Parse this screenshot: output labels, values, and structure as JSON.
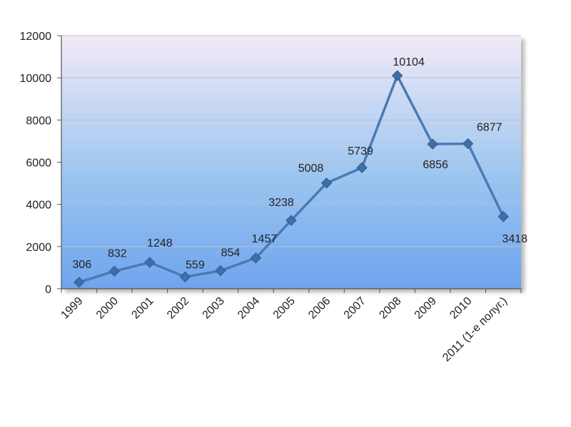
{
  "chart_data": {
    "type": "line",
    "title": "",
    "xlabel": "",
    "ylabel": "",
    "categories": [
      "1999",
      "2000",
      "2001",
      "2002",
      "2003",
      "2004",
      "2005",
      "2006",
      "2007",
      "2008",
      "2009",
      "2010",
      "2011 (1-е полуг.)"
    ],
    "series": [
      {
        "values": [
          306,
          832,
          1248,
          559,
          854,
          1457,
          3238,
          5008,
          5739,
          10104,
          6856,
          6877,
          3418
        ]
      }
    ],
    "data_labels": [
      "306",
      "832",
      "1248",
      "559",
      "854",
      "1457",
      "3238",
      "5008",
      "5739",
      "10104",
      "6856",
      "6877",
      "3418"
    ],
    "yticks": [
      "0",
      "2000",
      "4000",
      "6000",
      "8000",
      "10000",
      "12000"
    ],
    "ylim": [
      0,
      12000
    ],
    "grid": true,
    "legend": "none",
    "colors": {
      "line": "#4a7ab5",
      "marker": "#3f6ea8",
      "plot_top": "#f3e9f7",
      "plot_mid": "#9cc6f0",
      "plot_bottom": "#6fa4ee",
      "gridline": "#b9bfc8",
      "axis": "#555555"
    }
  }
}
